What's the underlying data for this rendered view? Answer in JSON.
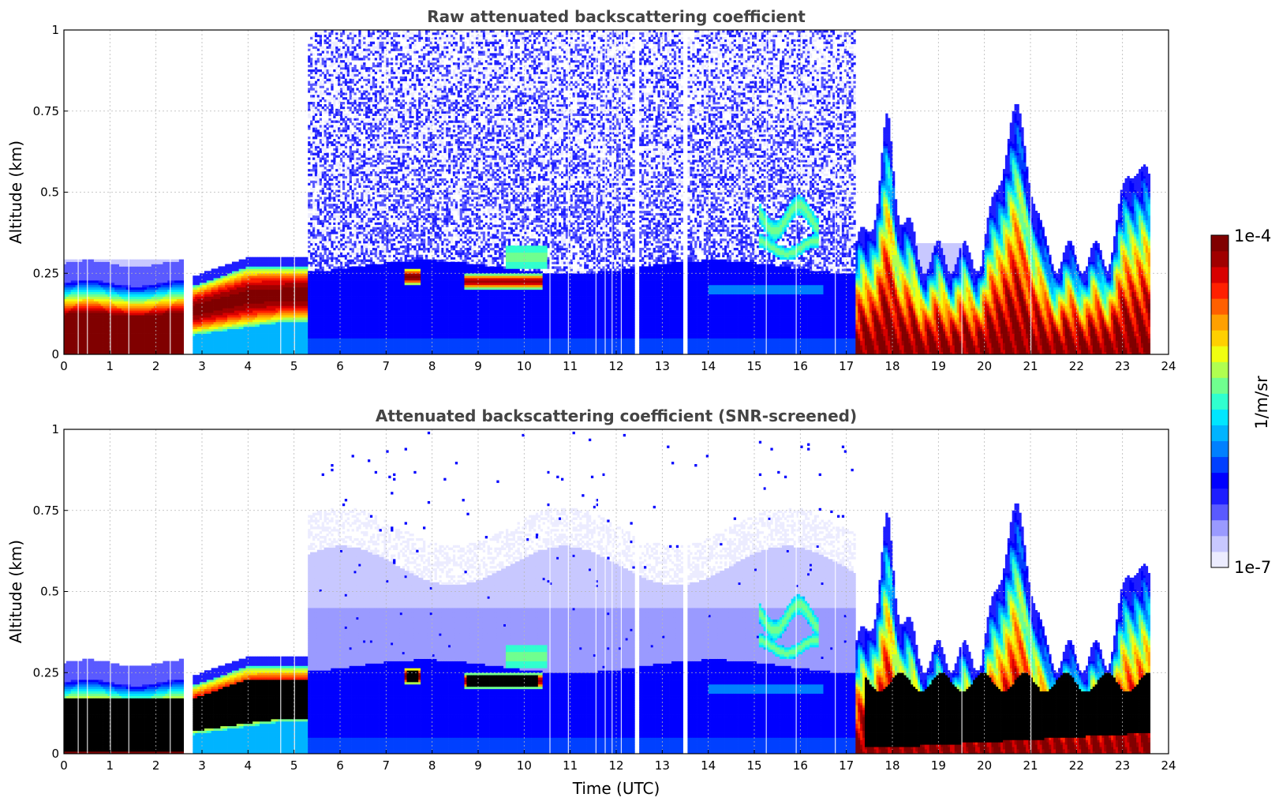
{
  "colorbar": {
    "max_label": "1e-4",
    "min_label": "1e-7",
    "unit_label": "1/m/sr",
    "range": [
      1e-07,
      0.0001
    ],
    "scale": "log",
    "colormap": "jet",
    "colors": [
      "#ececff",
      "#c8c8ff",
      "#9a9aff",
      "#5a5aff",
      "#1e1eff",
      "#0000ff",
      "#0040ff",
      "#0080ff",
      "#00b4ff",
      "#00e6ff",
      "#30ffcf",
      "#70ff8f",
      "#b0ff50",
      "#f0ff10",
      "#ffd000",
      "#ffa000",
      "#ff6000",
      "#ff2000",
      "#d80000",
      "#a00000",
      "#800000"
    ]
  },
  "chart_data": [
    {
      "type": "heatmap",
      "title": "Raw attenuated backscattering coefficient",
      "xlabel": "",
      "ylabel": "Altitude (km)",
      "xlim": [
        0,
        24
      ],
      "ylim": [
        0,
        1
      ],
      "xticks": [
        "0",
        "1",
        "2",
        "3",
        "4",
        "5",
        "6",
        "7",
        "8",
        "9",
        "10",
        "11",
        "12",
        "13",
        "14",
        "15",
        "16",
        "17",
        "18",
        "19",
        "20",
        "21",
        "22",
        "23",
        "24"
      ],
      "yticks": [
        "0",
        "0.25",
        "0.5",
        "0.75",
        "1"
      ],
      "grid": true,
      "missing_time_ranges": [
        [
          2.65,
          2.75
        ],
        [
          12.4,
          12.5
        ],
        [
          13.45,
          13.55
        ],
        [
          23.6,
          24
        ]
      ],
      "features": [
        {
          "time_range": [
            0,
            2.6
          ],
          "altitude_range": [
            0,
            0.23
          ],
          "level": "1e-4"
        },
        {
          "time_range": [
            2.8,
            5.3
          ],
          "altitude_range": [
            0.07,
            0.27
          ],
          "level": "1e-4"
        },
        {
          "time_range": [
            5.3,
            17.2
          ],
          "altitude_range": [
            0,
            1
          ],
          "level": "noise"
        },
        {
          "time_range": [
            7.4,
            7.7
          ],
          "altitude_range": [
            0.22,
            0.28
          ],
          "level": "1e-4"
        },
        {
          "time_range": [
            8.7,
            10.3
          ],
          "altitude_range": [
            0.2,
            0.26
          ],
          "level": "5e-5"
        },
        {
          "time_range": [
            15.1,
            16.5
          ],
          "altitude_range": [
            0.3,
            0.48
          ],
          "level": "3e-6"
        },
        {
          "time_range": [
            17.2,
            23.6
          ],
          "altitude_range": [
            0,
            0.8
          ],
          "level": "1e-4"
        }
      ]
    },
    {
      "type": "heatmap",
      "title": "Attenuated backscattering coefficient (SNR-screened)",
      "xlabel": "Time (UTC)",
      "ylabel": "Altitude (km)",
      "xlim": [
        0,
        24
      ],
      "ylim": [
        0,
        1
      ],
      "xticks": [
        "0",
        "1",
        "2",
        "3",
        "4",
        "5",
        "6",
        "7",
        "8",
        "9",
        "10",
        "11",
        "12",
        "13",
        "14",
        "15",
        "16",
        "17",
        "18",
        "19",
        "20",
        "21",
        "22",
        "23",
        "24"
      ],
      "yticks": [
        "0",
        "0.25",
        "0.5",
        "0.75",
        "1"
      ],
      "grid": true,
      "saturated_color": "#000000",
      "missing_time_ranges": [
        [
          2.65,
          2.75
        ],
        [
          12.4,
          12.5
        ],
        [
          13.45,
          13.55
        ],
        [
          23.6,
          24
        ]
      ],
      "features": [
        {
          "time_range": [
            0,
            2.6
          ],
          "altitude_range": [
            0,
            0.18
          ],
          "level": "saturated"
        },
        {
          "time_range": [
            2.8,
            5.3
          ],
          "altitude_range": [
            0.08,
            0.24
          ],
          "level": "saturated"
        },
        {
          "time_range": [
            5.3,
            17.2
          ],
          "altitude_range": [
            0,
            0.6
          ],
          "level": "1e-7"
        },
        {
          "time_range": [
            7.4,
            7.7
          ],
          "altitude_range": [
            0.22,
            0.26
          ],
          "level": "saturated"
        },
        {
          "time_range": [
            8.7,
            10.3
          ],
          "altitude_range": [
            0.19,
            0.26
          ],
          "level": "saturated"
        },
        {
          "time_range": [
            15.1,
            16.5
          ],
          "altitude_range": [
            0.3,
            0.48
          ],
          "level": "3e-6"
        },
        {
          "time_range": [
            17.2,
            23.6
          ],
          "altitude_range": [
            0,
            0.8
          ],
          "level": "1e-4"
        },
        {
          "time_range": [
            17.2,
            23.6
          ],
          "altitude_range": [
            0.02,
            0.25
          ],
          "level": "saturated"
        }
      ]
    }
  ]
}
